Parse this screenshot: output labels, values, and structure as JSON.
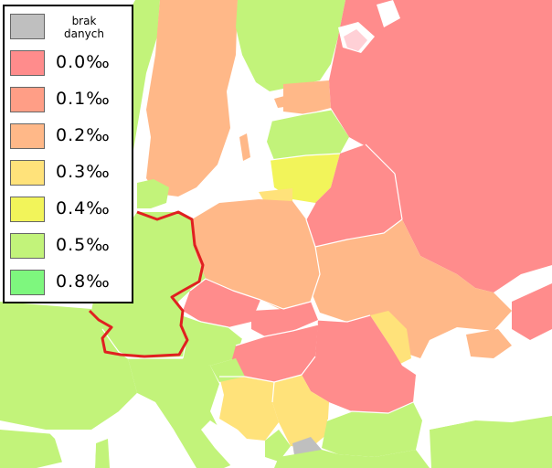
{
  "legend": {
    "no_data_line1": "brak",
    "no_data_line2": "danych",
    "no_data_color": "#bfbfbf",
    "entries": [
      {
        "label": "0.0‰",
        "color": "#ff8c8c"
      },
      {
        "label": "0.1‰",
        "color": "#ff9e86"
      },
      {
        "label": "0.2‰",
        "color": "#ffb888"
      },
      {
        "label": "0.3‰",
        "color": "#ffe27a"
      },
      {
        "label": "0.4‰",
        "color": "#f2f45a"
      },
      {
        "label": "0.5‰",
        "color": "#c2f37a"
      },
      {
        "label": "0.8‰",
        "color": "#7ef77e"
      }
    ]
  },
  "map": {
    "sea_color": "#ffffff",
    "border_color": "#e02020",
    "boundary_color": "#ffffff"
  }
}
